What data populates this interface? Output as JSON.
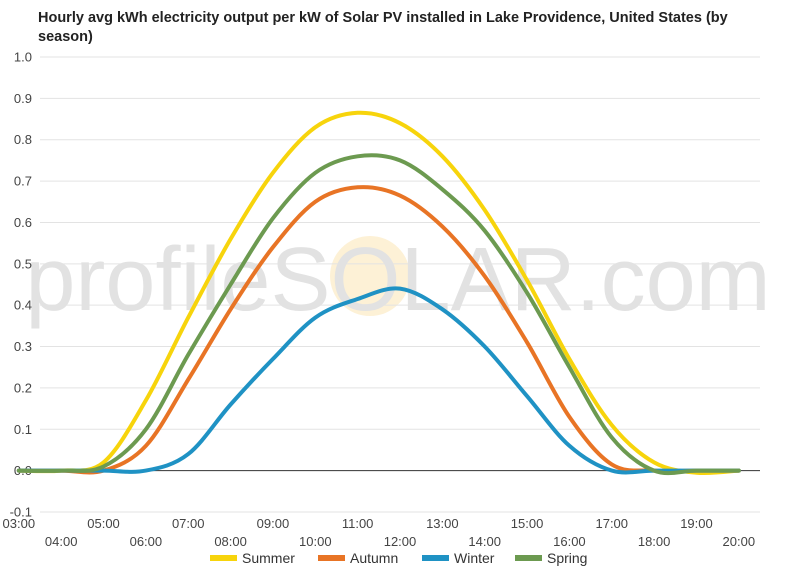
{
  "chart_data": {
    "type": "line",
    "title": "Hourly avg kWh electricity output per kW of Solar PV installed in Lake Providence, United States (by season)",
    "xlabel": "",
    "ylabel": "",
    "ylim": [
      -0.1,
      1.0
    ],
    "yticks": [
      "-0.1",
      "0.0",
      "0.1",
      "0.2",
      "0.3",
      "0.4",
      "0.5",
      "0.6",
      "0.7",
      "0.8",
      "0.9",
      "1.0"
    ],
    "categories": [
      "03:00",
      "04:00",
      "05:00",
      "06:00",
      "07:00",
      "08:00",
      "09:00",
      "10:00",
      "11:00",
      "12:00",
      "13:00",
      "14:00",
      "15:00",
      "16:00",
      "17:00",
      "18:00",
      "19:00",
      "20:00"
    ],
    "grid": true,
    "legend_position": "bottom",
    "watermark": "profileSOLAR.com",
    "series": [
      {
        "name": "Summer",
        "color": "#f7d40c",
        "values": [
          0.0,
          0.0,
          0.02,
          0.17,
          0.37,
          0.56,
          0.72,
          0.83,
          0.865,
          0.84,
          0.76,
          0.63,
          0.46,
          0.27,
          0.11,
          0.02,
          -0.005,
          0.0
        ]
      },
      {
        "name": "Autumn",
        "color": "#e87425",
        "values": [
          0.0,
          0.0,
          0.0,
          0.06,
          0.22,
          0.39,
          0.54,
          0.65,
          0.685,
          0.665,
          0.59,
          0.47,
          0.31,
          0.13,
          0.015,
          0.0,
          0.0,
          0.0
        ]
      },
      {
        "name": "Winter",
        "color": "#1f92c4",
        "values": [
          0.0,
          0.0,
          0.0,
          0.0,
          0.04,
          0.16,
          0.27,
          0.37,
          0.415,
          0.44,
          0.39,
          0.3,
          0.18,
          0.06,
          0.0,
          0.0,
          0.0,
          0.0
        ]
      },
      {
        "name": "Spring",
        "color": "#6c9a50",
        "values": [
          0.0,
          0.0,
          0.01,
          0.1,
          0.28,
          0.45,
          0.61,
          0.72,
          0.76,
          0.75,
          0.68,
          0.58,
          0.43,
          0.25,
          0.08,
          0.0,
          0.0,
          0.0
        ]
      }
    ]
  }
}
